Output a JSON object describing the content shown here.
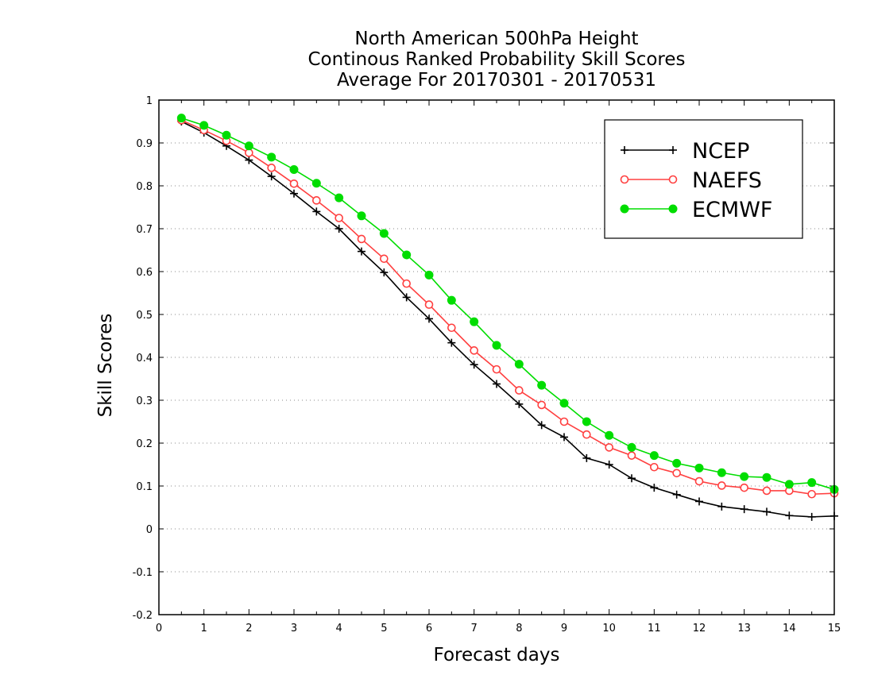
{
  "chart_data": {
    "type": "line",
    "title": [
      "North American 500hPa Height",
      "Continous Ranked Probability Skill Scores",
      "Average For 20170301 - 20170531"
    ],
    "xlabel": "Forecast days",
    "ylabel": "Skill Scores",
    "xlim": [
      0,
      15
    ],
    "ylim": [
      -0.2,
      1
    ],
    "xticks": [
      "0",
      "1",
      "2",
      "3",
      "4",
      "5",
      "6",
      "7",
      "8",
      "9",
      "10",
      "11",
      "12",
      "13",
      "14",
      "15"
    ],
    "yticks": [
      "-0.2",
      "-0.1",
      "0",
      "0.1",
      "0.2",
      "0.3",
      "0.4",
      "0.5",
      "0.6",
      "0.7",
      "0.8",
      "0.9",
      "1"
    ],
    "grid": "horizontal dotted",
    "legend_position": "top-right",
    "x": [
      0.5,
      1,
      1.5,
      2,
      2.5,
      3,
      3.5,
      4,
      4.5,
      5,
      5.5,
      6,
      6.5,
      7,
      7.5,
      8,
      8.5,
      9,
      9.5,
      10,
      10.5,
      11,
      11.5,
      12,
      12.5,
      13,
      13.5,
      14,
      14.5,
      15
    ],
    "series": [
      {
        "name": "NCEP",
        "color": "#000000",
        "marker": "plus",
        "values": [
          0.95,
          0.924,
          0.893,
          0.86,
          0.822,
          0.782,
          0.74,
          0.7,
          0.647,
          0.598,
          0.54,
          0.49,
          0.434,
          0.383,
          0.338,
          0.291,
          0.242,
          0.214,
          0.165,
          0.15,
          0.118,
          0.096,
          0.08,
          0.064,
          0.052,
          0.046,
          0.04,
          0.031,
          0.028,
          0.03
        ]
      },
      {
        "name": "NAEFS",
        "color": "#ff4040",
        "marker": "open-circle",
        "values": [
          0.953,
          0.93,
          0.905,
          0.877,
          0.842,
          0.805,
          0.766,
          0.725,
          0.676,
          0.63,
          0.572,
          0.523,
          0.469,
          0.416,
          0.372,
          0.323,
          0.289,
          0.25,
          0.22,
          0.19,
          0.171,
          0.144,
          0.13,
          0.111,
          0.101,
          0.096,
          0.089,
          0.089,
          0.081,
          0.083
        ]
      },
      {
        "name": "ECMWF",
        "color": "#00dd00",
        "marker": "filled-circle",
        "values": [
          0.958,
          0.941,
          0.918,
          0.893,
          0.867,
          0.838,
          0.806,
          0.772,
          0.73,
          0.689,
          0.639,
          0.592,
          0.533,
          0.483,
          0.428,
          0.384,
          0.335,
          0.293,
          0.25,
          0.218,
          0.19,
          0.171,
          0.153,
          0.142,
          0.131,
          0.122,
          0.12,
          0.104,
          0.108,
          0.092
        ]
      }
    ]
  }
}
